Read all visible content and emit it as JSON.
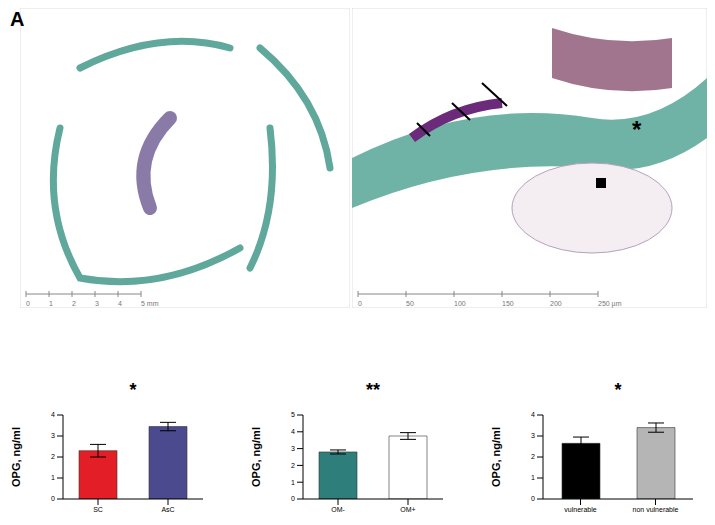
{
  "panel_label": "A",
  "images": [
    {
      "scale_bar_labels": [
        "0",
        "1",
        "2",
        "3",
        "4",
        "5 mm"
      ]
    },
    {
      "scale_bar_labels": [
        "0",
        "50",
        "100",
        "150",
        "200",
        "250 µm"
      ],
      "annotations": [
        "*"
      ]
    }
  ],
  "chart_data": [
    {
      "type": "bar",
      "categories": [
        "SC",
        "AsC"
      ],
      "values": [
        2.3,
        3.45
      ],
      "errors": [
        0.3,
        0.2
      ],
      "colors": [
        "#e41e26",
        "#4b4a8e"
      ],
      "ylabel": "OPG, ng/ml",
      "ylim": [
        0,
        4
      ],
      "yticks": [
        0,
        1,
        2,
        3,
        4
      ],
      "annotation": "*"
    },
    {
      "type": "bar",
      "categories": [
        "OM-",
        "OM+"
      ],
      "values": [
        2.8,
        3.75
      ],
      "errors": [
        0.12,
        0.2
      ],
      "colors": [
        "#2e7e7b",
        "#ffffff"
      ],
      "ylabel": "OPG, ng/ml",
      "ylim": [
        0,
        5
      ],
      "yticks": [
        0,
        1,
        2,
        3,
        4,
        5
      ],
      "annotation": "**"
    },
    {
      "type": "bar",
      "categories": [
        "vulnerable",
        "non vulnerable"
      ],
      "values": [
        2.65,
        3.4
      ],
      "errors": [
        0.3,
        0.22
      ],
      "colors": [
        "#000000",
        "#b5b5b5"
      ],
      "ylabel": "OPG, ng/ml",
      "ylim": [
        0,
        4
      ],
      "yticks": [
        0,
        1,
        2,
        3,
        4
      ],
      "annotation": "*"
    }
  ]
}
